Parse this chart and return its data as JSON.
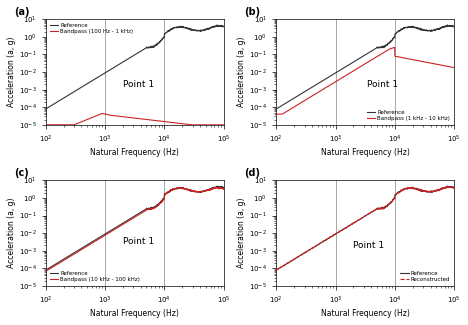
{
  "title_a": "(a)",
  "title_b": "(b)",
  "title_c": "(c)",
  "title_d": "(d)",
  "xlim": [
    100,
    100000
  ],
  "ylim": [
    1e-05,
    10.0
  ],
  "xlabel": "Natural Frequency (Hz)",
  "ylabel": "Acceleration (a, g)",
  "vlines_abc": [
    1000,
    10000
  ],
  "vlines_d": [
    1000,
    10000
  ],
  "legend_a": [
    "Reference",
    "Bandpass (100 Hz - 1 kHz)"
  ],
  "legend_b": [
    "Reference",
    "Bandpass (1 kHz - 10 kHz)"
  ],
  "legend_c": [
    "Reference",
    "Bandpass (10 kHz - 100 kHz)"
  ],
  "legend_d": [
    "Reference",
    "Reconstructed"
  ],
  "ref_color": "#333333",
  "band_color": "#cc2222",
  "recon_color": "#cc2222",
  "point_label": "Point 1",
  "background": "#ffffff",
  "vline_color": "#999999"
}
